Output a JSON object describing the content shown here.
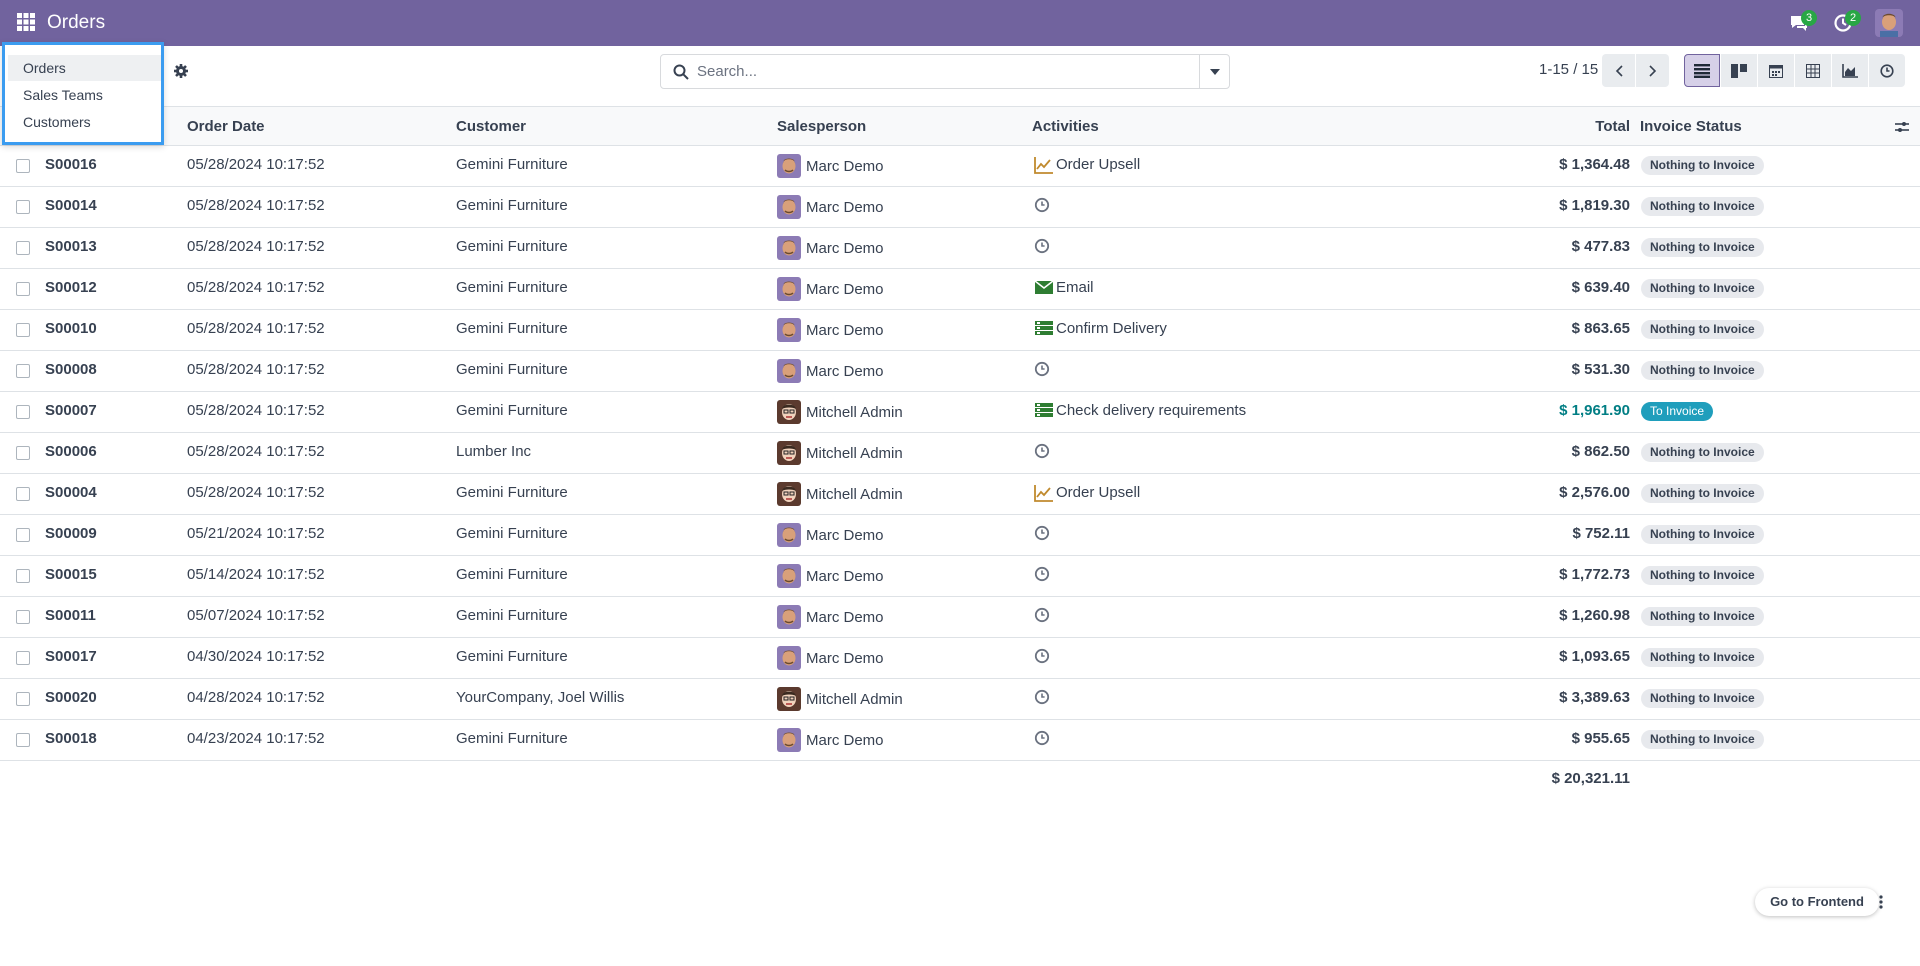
{
  "navbar": {
    "title": "Orders",
    "messages_count": "3",
    "activities_count": "2",
    "brand_color": "#71639e"
  },
  "menu": {
    "items": [
      "Orders",
      "Sales Teams",
      "Customers"
    ]
  },
  "search": {
    "placeholder": "Search..."
  },
  "pager": {
    "value": "1-15 / 15"
  },
  "views": [
    "list",
    "kanban",
    "calendar",
    "pivot",
    "graph",
    "activity"
  ],
  "table": {
    "columns": {
      "order_date": "Order Date",
      "customer": "Customer",
      "salesperson": "Salesperson",
      "activities": "Activities",
      "total": "Total",
      "invoice_status": "Invoice Status"
    },
    "rows": [
      {
        "ref": "S00016",
        "date": "05/28/2024 10:17:52",
        "customer": "Gemini Furniture",
        "salesperson": "Marc Demo",
        "activity": "Order Upsell",
        "activity_icon": "upsell-icon",
        "total": "$ 1,364.48",
        "status": "Nothing to Invoice"
      },
      {
        "ref": "S00014",
        "date": "05/28/2024 10:17:52",
        "customer": "Gemini Furniture",
        "salesperson": "Marc Demo",
        "activity": "",
        "activity_icon": "clock-icon",
        "total": "$ 1,819.30",
        "status": "Nothing to Invoice"
      },
      {
        "ref": "S00013",
        "date": "05/28/2024 10:17:52",
        "customer": "Gemini Furniture",
        "salesperson": "Marc Demo",
        "activity": "",
        "activity_icon": "clock-icon",
        "total": "$ 477.83",
        "status": "Nothing to Invoice"
      },
      {
        "ref": "S00012",
        "date": "05/28/2024 10:17:52",
        "customer": "Gemini Furniture",
        "salesperson": "Marc Demo",
        "activity": "Email",
        "activity_icon": "email-icon",
        "total": "$ 639.40",
        "status": "Nothing to Invoice"
      },
      {
        "ref": "S00010",
        "date": "05/28/2024 10:17:52",
        "customer": "Gemini Furniture",
        "salesperson": "Marc Demo",
        "activity": "Confirm Delivery",
        "activity_icon": "todo-icon",
        "total": "$ 863.65",
        "status": "Nothing to Invoice"
      },
      {
        "ref": "S00008",
        "date": "05/28/2024 10:17:52",
        "customer": "Gemini Furniture",
        "salesperson": "Marc Demo",
        "activity": "",
        "activity_icon": "clock-icon",
        "total": "$ 531.30",
        "status": "Nothing to Invoice"
      },
      {
        "ref": "S00007",
        "date": "05/28/2024 10:17:52",
        "customer": "Gemini Furniture",
        "salesperson": "Mitchell Admin",
        "activity": "Check delivery requirements",
        "activity_icon": "todo-icon",
        "total": "$ 1,961.90",
        "status": "To Invoice"
      },
      {
        "ref": "S00006",
        "date": "05/28/2024 10:17:52",
        "customer": "Lumber Inc",
        "salesperson": "Mitchell Admin",
        "activity": "",
        "activity_icon": "clock-icon",
        "total": "$ 862.50",
        "status": "Nothing to Invoice"
      },
      {
        "ref": "S00004",
        "date": "05/28/2024 10:17:52",
        "customer": "Gemini Furniture",
        "salesperson": "Mitchell Admin",
        "activity": "Order Upsell",
        "activity_icon": "upsell-icon",
        "total": "$ 2,576.00",
        "status": "Nothing to Invoice"
      },
      {
        "ref": "S00009",
        "date": "05/21/2024 10:17:52",
        "customer": "Gemini Furniture",
        "salesperson": "Marc Demo",
        "activity": "",
        "activity_icon": "clock-icon",
        "total": "$ 752.11",
        "status": "Nothing to Invoice"
      },
      {
        "ref": "S00015",
        "date": "05/14/2024 10:17:52",
        "customer": "Gemini Furniture",
        "salesperson": "Marc Demo",
        "activity": "",
        "activity_icon": "clock-icon",
        "total": "$ 1,772.73",
        "status": "Nothing to Invoice"
      },
      {
        "ref": "S00011",
        "date": "05/07/2024 10:17:52",
        "customer": "Gemini Furniture",
        "salesperson": "Marc Demo",
        "activity": "",
        "activity_icon": "clock-icon",
        "total": "$ 1,260.98",
        "status": "Nothing to Invoice"
      },
      {
        "ref": "S00017",
        "date": "04/30/2024 10:17:52",
        "customer": "Gemini Furniture",
        "salesperson": "Marc Demo",
        "activity": "",
        "activity_icon": "clock-icon",
        "total": "$ 1,093.65",
        "status": "Nothing to Invoice"
      },
      {
        "ref": "S00020",
        "date": "04/28/2024 10:17:52",
        "customer": "YourCompany, Joel Willis",
        "salesperson": "Mitchell Admin",
        "activity": "",
        "activity_icon": "clock-icon",
        "total": "$ 3,389.63",
        "status": "Nothing to Invoice"
      },
      {
        "ref": "S00018",
        "date": "04/23/2024 10:17:52",
        "customer": "Gemini Furniture",
        "salesperson": "Marc Demo",
        "activity": "",
        "activity_icon": "clock-icon",
        "total": "$ 955.65",
        "status": "Nothing to Invoice"
      }
    ],
    "grand_total": "$ 20,321.11"
  },
  "footer": {
    "frontend_label": "Go to Frontend"
  },
  "colors": {
    "accent": "#71639e",
    "to_invoice_badge": "#1f9ebc",
    "highlight_total": "#017e84",
    "menu_outline": "#3b9cf0"
  }
}
